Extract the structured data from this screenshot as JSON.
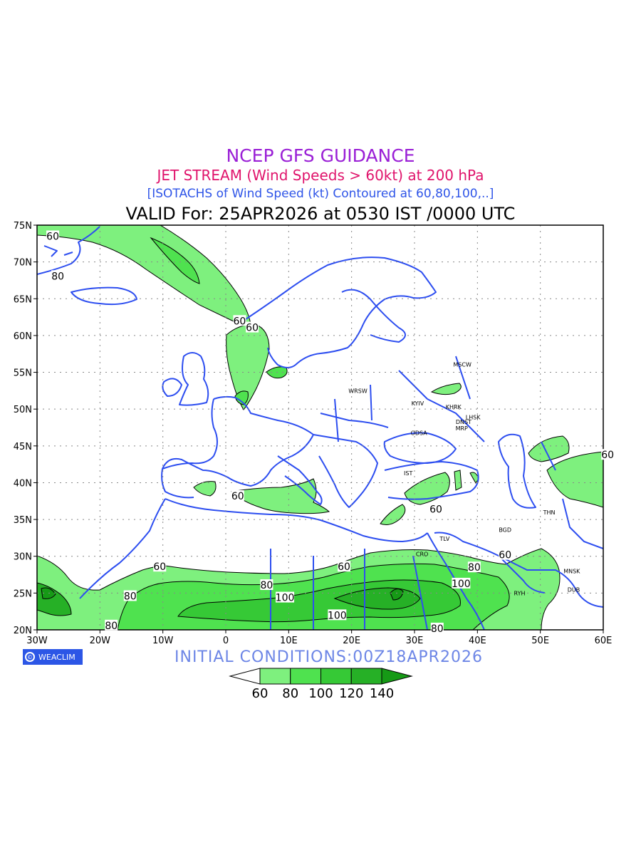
{
  "title": {
    "main": "NCEP GFS GUIDANCE",
    "sub": "JET STREAM (Wind Speeds > 60kt) at 200 hPa",
    "isotachs": "[ISOTACHS of Wind Speed (kt) Contoured at 60,80,100,..]",
    "valid": "VALID For: 25APR2026 at 0530 IST /0000 UTC"
  },
  "initial_conditions": "INITIAL CONDITIONS:00Z18APR2026",
  "logo_text": "WEACLIM",
  "map": {
    "lon_range": [
      -30,
      60
    ],
    "lat_range": [
      20,
      75
    ],
    "x_ticks": [
      {
        "lon": -30,
        "label": "30W"
      },
      {
        "lon": -20,
        "label": "20W"
      },
      {
        "lon": -10,
        "label": "10W"
      },
      {
        "lon": 0,
        "label": "0"
      },
      {
        "lon": 10,
        "label": "10E"
      },
      {
        "lon": 20,
        "label": "20E"
      },
      {
        "lon": 30,
        "label": "30E"
      },
      {
        "lon": 40,
        "label": "40E"
      },
      {
        "lon": 50,
        "label": "50E"
      },
      {
        "lon": 60,
        "label": "60E"
      }
    ],
    "y_ticks": [
      {
        "lat": 75,
        "label": "75N"
      },
      {
        "lat": 70,
        "label": "70N"
      },
      {
        "lat": 65,
        "label": "65N"
      },
      {
        "lat": 60,
        "label": "60N"
      },
      {
        "lat": 55,
        "label": "55N"
      },
      {
        "lat": 50,
        "label": "50N"
      },
      {
        "lat": 45,
        "label": "45N"
      },
      {
        "lat": 40,
        "label": "40N"
      },
      {
        "lat": 35,
        "label": "35N"
      },
      {
        "lat": 30,
        "label": "30N"
      },
      {
        "lat": 25,
        "label": "25N"
      },
      {
        "lat": 20,
        "label": "20N"
      }
    ],
    "grid": "dotted",
    "colors": {
      "c60": "#7ef07e",
      "c80": "#4fe24f",
      "c100": "#36c936",
      "c120": "#26b026",
      "c140": "#169a16",
      "coast": "#2d4ef0",
      "contour": "#000000"
    },
    "cities": [
      {
        "name": "MSCW",
        "lon": 37.6,
        "lat": 55.8
      },
      {
        "name": "WRSW",
        "lon": 21.0,
        "lat": 52.2
      },
      {
        "name": "KYIV",
        "lon": 30.5,
        "lat": 50.5
      },
      {
        "name": "KHRK",
        "lon": 36.2,
        "lat": 50.0
      },
      {
        "name": "LHSK",
        "lon": 39.3,
        "lat": 48.6
      },
      {
        "name": "DNST",
        "lon": 37.8,
        "lat": 48.0
      },
      {
        "name": "MRP",
        "lon": 37.5,
        "lat": 47.1
      },
      {
        "name": "ODSA",
        "lon": 30.7,
        "lat": 46.5
      },
      {
        "name": "IST",
        "lon": 29.0,
        "lat": 41.0
      },
      {
        "name": "THN",
        "lon": 51.4,
        "lat": 35.7
      },
      {
        "name": "BGD",
        "lon": 44.4,
        "lat": 33.3
      },
      {
        "name": "TLV",
        "lon": 34.8,
        "lat": 32.1
      },
      {
        "name": "CRO",
        "lon": 31.2,
        "lat": 30.0
      },
      {
        "name": "RYH",
        "lon": 46.7,
        "lat": 24.7
      },
      {
        "name": "MNSK",
        "lon": 55.0,
        "lat": 27.7
      },
      {
        "name": "DUB",
        "lon": 55.3,
        "lat": 25.2
      }
    ],
    "contour_labels": [
      {
        "text": "60",
        "lon": -27.5,
        "lat": 73.5
      },
      {
        "text": "80",
        "lon": -26.7,
        "lat": 68.1
      },
      {
        "text": "60",
        "lon": 2.2,
        "lat": 62.0
      },
      {
        "text": "60",
        "lon": 4.2,
        "lat": 61.1
      },
      {
        "text": "60",
        "lon": 1.9,
        "lat": 38.2
      },
      {
        "text": "60",
        "lon": 60.7,
        "lat": 43.8
      },
      {
        "text": "60",
        "lon": 33.4,
        "lat": 36.4
      },
      {
        "text": "60",
        "lon": 44.4,
        "lat": 30.2
      },
      {
        "text": "60",
        "lon": -10.5,
        "lat": 28.6
      },
      {
        "text": "60",
        "lon": 18.8,
        "lat": 28.6
      },
      {
        "text": "80",
        "lon": 39.5,
        "lat": 28.5
      },
      {
        "text": "80",
        "lon": 6.5,
        "lat": 26.1
      },
      {
        "text": "80",
        "lon": -15.2,
        "lat": 24.6
      },
      {
        "text": "100",
        "lon": 9.4,
        "lat": 24.4
      },
      {
        "text": "100",
        "lon": 37.4,
        "lat": 26.3
      },
      {
        "text": "100",
        "lon": 17.7,
        "lat": 22.0
      },
      {
        "text": "80",
        "lon": -18.2,
        "lat": 20.6
      },
      {
        "text": "80",
        "lon": 33.6,
        "lat": 20.2
      }
    ]
  },
  "colorbar": {
    "labels": [
      "60",
      "80",
      "100",
      "120",
      "140"
    ],
    "colors": [
      "#7ef07e",
      "#4fe24f",
      "#36c936",
      "#26b026",
      "#169a16"
    ]
  }
}
